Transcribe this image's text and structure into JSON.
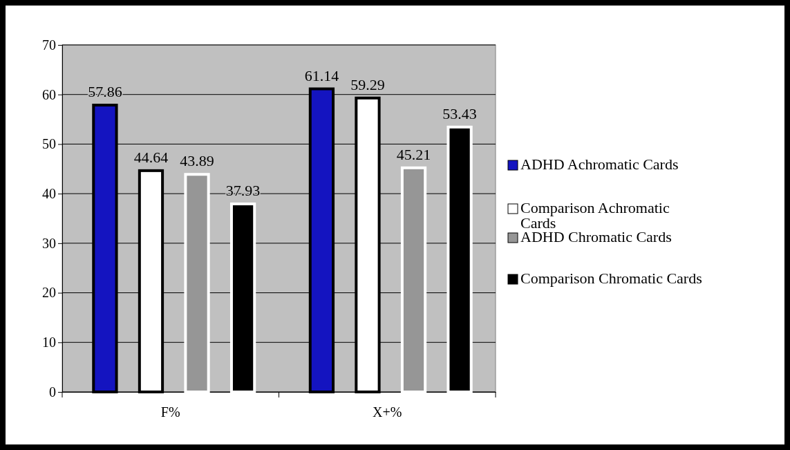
{
  "chart_data": {
    "type": "bar",
    "categories": [
      "F%",
      "X+%"
    ],
    "series": [
      {
        "name": "ADHD Achromatic Cards",
        "color": "#1414c0",
        "values": [
          57.86,
          61.14
        ]
      },
      {
        "name": "Comparison Achromatic Cards",
        "color": "#ffffff",
        "values": [
          44.64,
          59.29
        ]
      },
      {
        "name": "ADHD Chromatic Cards",
        "color": "#969696",
        "values": [
          43.89,
          45.21
        ]
      },
      {
        "name": "Comparison Chromatic Cards",
        "color": "#000000",
        "values": [
          37.93,
          53.43
        ]
      }
    ],
    "ylim": [
      0,
      70
    ],
    "yticks": [
      0,
      10,
      20,
      30,
      40,
      50,
      60,
      70
    ],
    "grid": "y",
    "legend": "right",
    "data_labels": true
  }
}
